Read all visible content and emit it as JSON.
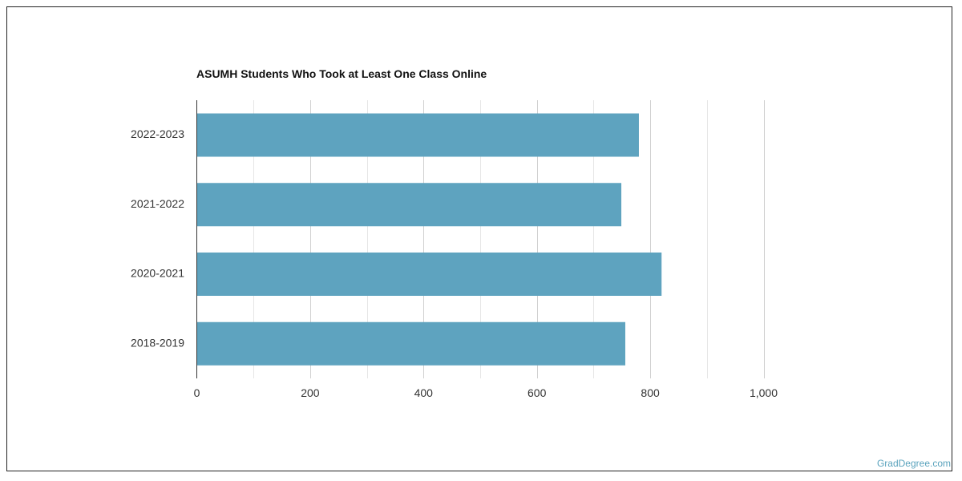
{
  "chart_data": {
    "type": "bar",
    "orientation": "horizontal",
    "title": "ASUMH Students Who Took at Least One Class Online",
    "categories": [
      "2022-2023",
      "2021-2022",
      "2020-2021",
      "2018-2019"
    ],
    "values": [
      780,
      749,
      820,
      756
    ],
    "xlabel": "",
    "ylabel": "",
    "xlim": [
      0,
      1000
    ],
    "x_ticks": [
      "0",
      "200",
      "400",
      "600",
      "800",
      "1,000"
    ],
    "grid": true,
    "bar_color": "#5ea3bf"
  },
  "credit": "GradDegree.com"
}
